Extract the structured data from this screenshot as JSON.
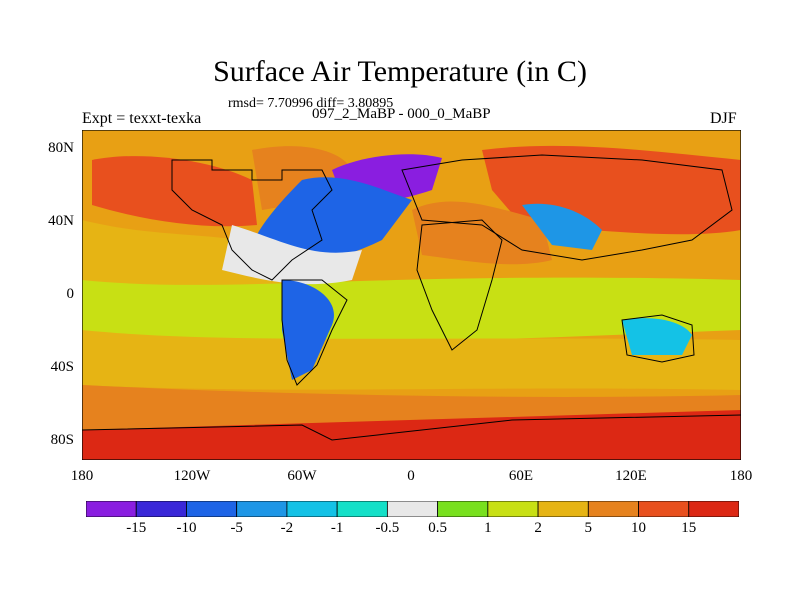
{
  "title": "Surface Air Temperature (in C)",
  "stats": "rmsd= 7.70996 diff= 3.80895",
  "left_label": "Expt = texxt-texka",
  "center_label": "097_2_MaBP - 000_0_MaBP",
  "right_label": "DJF",
  "y_ticks": [
    "80N",
    "40N",
    "0",
    "40S",
    "80S"
  ],
  "x_ticks": [
    "180",
    "120W",
    "60W",
    "0",
    "60E",
    "120E",
    "180"
  ],
  "colorbar": {
    "labels": [
      "-15",
      "-10",
      "-5",
      "-2",
      "-1",
      "-0.5",
      "0.5",
      "1",
      "2",
      "5",
      "10",
      "15"
    ],
    "colors": [
      "#8a1ee0",
      "#3a28d8",
      "#1e64e6",
      "#1e96e6",
      "#14c2e6",
      "#14e0c8",
      "#e8e8e8",
      "#78e01e",
      "#c8e014",
      "#e6b414",
      "#e6821e",
      "#e8501e",
      "#dc2814"
    ]
  },
  "colors": {
    "ocean_base": "#e8a014",
    "land_outline": "#000000"
  }
}
